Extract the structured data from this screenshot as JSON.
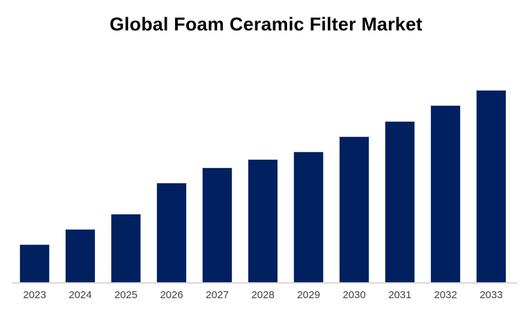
{
  "page": {
    "background_color": "#ffffff"
  },
  "chart_data": {
    "type": "bar",
    "title": "Global Foam Ceramic Filter Market",
    "categories": [
      "2023",
      "2024",
      "2025",
      "2026",
      "2027",
      "2028",
      "2029",
      "2030",
      "2031",
      "2032",
      "2033"
    ],
    "values": [
      20,
      28,
      36,
      52,
      60,
      64,
      68,
      76,
      84,
      92,
      100
    ],
    "xlabel": "",
    "ylabel": "",
    "ylim": [
      0,
      100
    ],
    "y_axis_visible": false,
    "grid": false,
    "legend": false,
    "note": "no y-axis or data labels shown; values are relative bar heights indexed to tallest bar = 100",
    "colors": {
      "bar_fill": "#002060",
      "bar_border": "#ccd4e4",
      "axis_line": "#d9d9d9",
      "tick_label": "#404040",
      "title": "#000000"
    }
  }
}
